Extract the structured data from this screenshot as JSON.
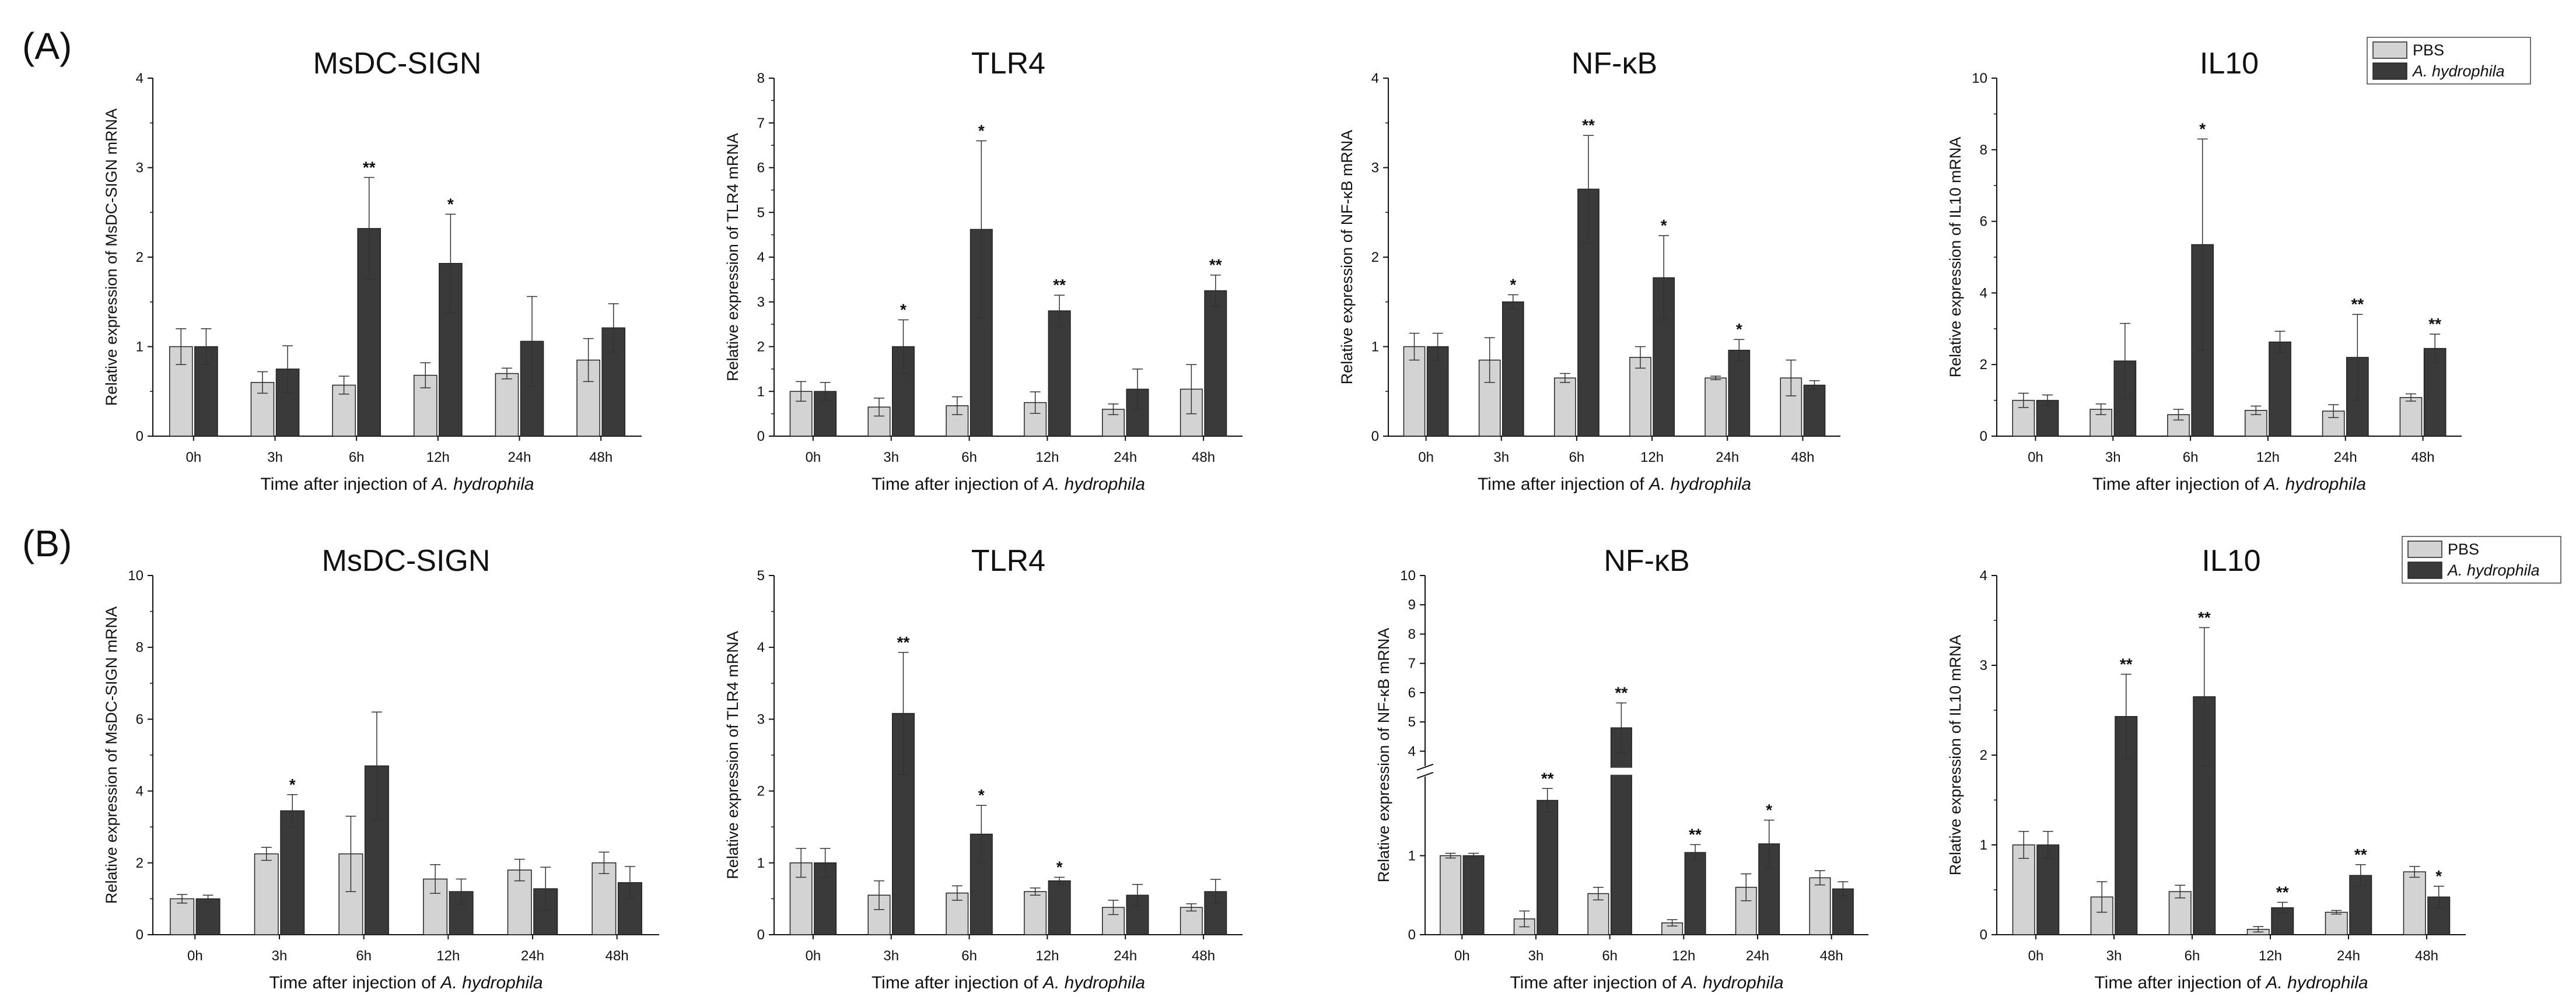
{
  "panel_labels": [
    "(A)",
    "(B)"
  ],
  "legend": {
    "entries": [
      {
        "label": "PBS",
        "color": "#d3d3d3",
        "italic": false
      },
      {
        "label": "A. hydrophila",
        "color": "#3a3a3a",
        "italic": true
      }
    ]
  },
  "colors": {
    "pbs": "#d3d3d3",
    "treated": "#3a3a3a",
    "axis": "#111111"
  },
  "chart_data": [
    {
      "row": "A",
      "type": "bar",
      "title": "MsDC-SIGN",
      "ylabel": "Relative expression of MsDC-SIGN mRNA",
      "xlabel_prefix": "Time after injection of ",
      "xlabel_italic": "A. hydrophila",
      "categories": [
        "0h",
        "3h",
        "6h",
        "12h",
        "24h",
        "48h"
      ],
      "ylim": [
        0,
        4
      ],
      "yticks": [
        "0",
        "1",
        "2",
        "3",
        "4"
      ],
      "series": [
        {
          "name": "PBS",
          "values": [
            1.0,
            0.6,
            0.57,
            0.68,
            0.7,
            0.85
          ],
          "errors": [
            0.2,
            0.12,
            0.1,
            0.14,
            0.06,
            0.24
          ]
        },
        {
          "name": "A. hydrophila",
          "values": [
            1.0,
            0.75,
            2.32,
            1.93,
            1.06,
            1.21
          ],
          "errors": [
            0.2,
            0.26,
            0.57,
            0.55,
            0.5,
            0.27
          ]
        }
      ],
      "significance": [
        "",
        "",
        "**",
        "*",
        "",
        ""
      ]
    },
    {
      "row": "A",
      "type": "bar",
      "title": "TLR4",
      "ylabel": "Relative expression of TLR4 mRNA",
      "xlabel_prefix": "Time after injection of ",
      "xlabel_italic": "A. hydrophila",
      "categories": [
        "0h",
        "3h",
        "6h",
        "12h",
        "24h",
        "48h"
      ],
      "ylim": [
        0,
        8
      ],
      "yticks": [
        "0",
        "1",
        "2",
        "3",
        "4",
        "5",
        "6",
        "7",
        "8"
      ],
      "series": [
        {
          "name": "PBS",
          "values": [
            1.0,
            0.65,
            0.68,
            0.75,
            0.6,
            1.05
          ],
          "errors": [
            0.22,
            0.2,
            0.2,
            0.24,
            0.12,
            0.55
          ]
        },
        {
          "name": "A. hydrophila",
          "values": [
            1.0,
            2.0,
            4.62,
            2.8,
            1.05,
            3.25
          ],
          "errors": [
            0.2,
            0.6,
            1.98,
            0.35,
            0.45,
            0.35
          ]
        }
      ],
      "significance": [
        "",
        "*",
        "*",
        "**",
        "",
        "**"
      ]
    },
    {
      "row": "A",
      "type": "bar",
      "title": "NF-κB",
      "ylabel": "Relative expression of NF-κB mRNA",
      "xlabel_prefix": "Time after injection of ",
      "xlabel_italic": "A. hydrophila",
      "categories": [
        "0h",
        "3h",
        "6h",
        "12h",
        "24h",
        "48h"
      ],
      "ylim": [
        0,
        4
      ],
      "yticks": [
        "0",
        "1",
        "2",
        "3",
        "4"
      ],
      "series": [
        {
          "name": "PBS",
          "values": [
            1.0,
            0.85,
            0.65,
            0.88,
            0.65,
            0.65
          ],
          "errors": [
            0.15,
            0.25,
            0.05,
            0.12,
            0.02,
            0.2
          ]
        },
        {
          "name": "A. hydrophila",
          "values": [
            1.0,
            1.5,
            2.76,
            1.77,
            0.96,
            0.57
          ],
          "errors": [
            0.15,
            0.08,
            0.6,
            0.47,
            0.12,
            0.05
          ]
        }
      ],
      "significance": [
        "",
        "*",
        "**",
        "*",
        "*",
        ""
      ]
    },
    {
      "row": "A",
      "type": "bar",
      "title": "IL10",
      "ylabel": "Relative expression of IL10 mRNA",
      "xlabel_prefix": "Time after injection of ",
      "xlabel_italic": "A. hydrophila",
      "categories": [
        "0h",
        "3h",
        "6h",
        "12h",
        "24h",
        "48h"
      ],
      "ylim": [
        0,
        10
      ],
      "yticks": [
        "0",
        "2",
        "4",
        "6",
        "8",
        "10"
      ],
      "series": [
        {
          "name": "PBS",
          "values": [
            1.0,
            0.75,
            0.6,
            0.72,
            0.7,
            1.08
          ],
          "errors": [
            0.2,
            0.15,
            0.15,
            0.12,
            0.18,
            0.1
          ]
        },
        {
          "name": "A. hydrophila",
          "values": [
            1.0,
            2.1,
            5.35,
            2.63,
            2.2,
            2.45
          ],
          "errors": [
            0.15,
            1.05,
            2.95,
            0.3,
            1.2,
            0.4
          ]
        }
      ],
      "significance": [
        "",
        "",
        "*",
        "",
        "**",
        "**"
      ]
    },
    {
      "row": "B",
      "type": "bar",
      "title": "MsDC-SIGN",
      "ylabel": "Relative expression of MsDC-SIGN mRNA",
      "xlabel_prefix": "Time after injection of ",
      "xlabel_italic": "A. hydrophila",
      "categories": [
        "0h",
        "3h",
        "6h",
        "12h",
        "24h",
        "48h"
      ],
      "ylim": [
        0,
        10
      ],
      "yticks": [
        "0",
        "2",
        "4",
        "6",
        "8",
        "10"
      ],
      "series": [
        {
          "name": "PBS",
          "values": [
            1.0,
            2.25,
            2.25,
            1.55,
            1.8,
            2.0
          ],
          "errors": [
            0.12,
            0.18,
            1.05,
            0.4,
            0.3,
            0.3
          ]
        },
        {
          "name": "A. hydrophila",
          "values": [
            1.0,
            3.45,
            4.7,
            1.2,
            1.28,
            1.45
          ],
          "errors": [
            0.1,
            0.45,
            1.5,
            0.35,
            0.6,
            0.45
          ]
        }
      ],
      "significance": [
        "",
        "*",
        "",
        "",
        "",
        ""
      ]
    },
    {
      "row": "B",
      "type": "bar",
      "title": "TLR4",
      "ylabel": "Relative expression of TLR4 mRNA",
      "xlabel_prefix": "Time after injection of ",
      "xlabel_italic": "A. hydrophila",
      "categories": [
        "0h",
        "3h",
        "6h",
        "12h",
        "24h",
        "48h"
      ],
      "ylim": [
        0,
        5
      ],
      "yticks": [
        "0",
        "1",
        "2",
        "3",
        "4",
        "5"
      ],
      "series": [
        {
          "name": "PBS",
          "values": [
            1.0,
            0.55,
            0.58,
            0.6,
            0.38,
            0.38
          ],
          "errors": [
            0.2,
            0.2,
            0.1,
            0.05,
            0.1,
            0.05
          ]
        },
        {
          "name": "A. hydrophila",
          "values": [
            1.0,
            3.08,
            1.4,
            0.75,
            0.55,
            0.6
          ],
          "errors": [
            0.2,
            0.85,
            0.4,
            0.05,
            0.15,
            0.17
          ]
        }
      ],
      "significance": [
        "",
        "**",
        "*",
        "*",
        "",
        ""
      ]
    },
    {
      "row": "B",
      "type": "bar",
      "title": "NF-κB",
      "ylabel": "Relative expression of NF-κB mRNA",
      "xlabel_prefix": "Time after injection of ",
      "xlabel_italic": "A. hydrophila",
      "categories": [
        "0h",
        "3h",
        "6h",
        "12h",
        "24h",
        "48h"
      ],
      "ylim": [
        0,
        10
      ],
      "axis_break": [
        2,
        3.5
      ],
      "yticks": [
        "0",
        "1",
        "4",
        "5",
        "6",
        "7",
        "8",
        "9",
        "10"
      ],
      "series": [
        {
          "name": "PBS",
          "values": [
            1.0,
            0.2,
            0.52,
            0.15,
            0.6,
            0.72
          ],
          "errors": [
            0.03,
            0.1,
            0.08,
            0.04,
            0.17,
            0.09
          ]
        },
        {
          "name": "A. hydrophila",
          "values": [
            1.0,
            1.7,
            4.8,
            1.04,
            1.15,
            0.58
          ],
          "errors": [
            0.03,
            0.15,
            0.85,
            0.1,
            0.3,
            0.09
          ]
        }
      ],
      "significance": [
        "",
        "**",
        "**",
        "**",
        "*",
        ""
      ]
    },
    {
      "row": "B",
      "type": "bar",
      "title": "IL10",
      "ylabel": "Relative expression of IL10 mRNA",
      "xlabel_prefix": "Time after injection of ",
      "xlabel_italic": "A. hydrophila",
      "categories": [
        "0h",
        "3h",
        "6h",
        "12h",
        "24h",
        "48h"
      ],
      "ylim": [
        0,
        4
      ],
      "yticks": [
        "0",
        "1",
        "2",
        "3",
        "4"
      ],
      "series": [
        {
          "name": "PBS",
          "values": [
            1.0,
            0.42,
            0.48,
            0.06,
            0.25,
            0.7
          ],
          "errors": [
            0.15,
            0.17,
            0.07,
            0.03,
            0.02,
            0.06
          ]
        },
        {
          "name": "A. hydrophila",
          "values": [
            1.0,
            2.43,
            2.65,
            0.3,
            0.66,
            0.42
          ],
          "errors": [
            0.15,
            0.47,
            0.77,
            0.06,
            0.12,
            0.12
          ]
        }
      ],
      "significance": [
        "",
        "**",
        "**",
        "**",
        "**",
        "*"
      ]
    }
  ]
}
